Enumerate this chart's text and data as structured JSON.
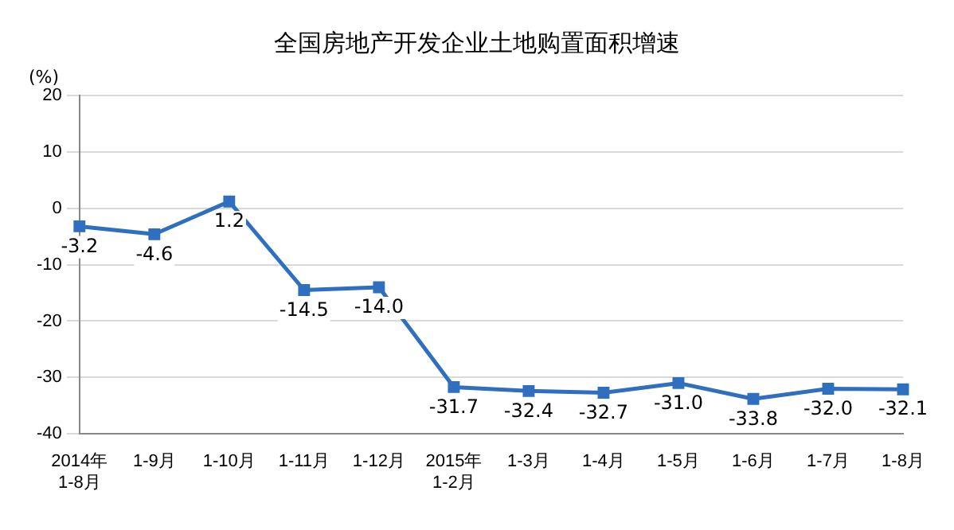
{
  "chart_data": {
    "type": "line",
    "title": "全国房地产开发企业土地购置面积增速",
    "ylabel": "(%)",
    "categories": [
      "2014年\n1-8月",
      "1-9月",
      "1-10月",
      "1-11月",
      "1-12月",
      "2015年\n1-2月",
      "1-3月",
      "1-4月",
      "1-5月",
      "1-6月",
      "1-7月",
      "1-8月"
    ],
    "series": [
      {
        "color": "#2f6fbf",
        "values": [
          -3.2,
          -4.6,
          1.2,
          -14.5,
          -14.0,
          -31.7,
          -32.4,
          -32.7,
          -31.0,
          -33.8,
          -32.0,
          -32.1
        ],
        "value_labels": [
          "-3.2",
          "-4.6",
          "1.2",
          "-14.5",
          "-14.0",
          "-31.7",
          "-32.4",
          "-32.7",
          "-31.0",
          "-33.8",
          "-32.0",
          "-32.1"
        ]
      }
    ],
    "ylim": [
      -40,
      20
    ],
    "yticks": [
      -40,
      -30,
      -20,
      -10,
      0,
      10,
      20
    ],
    "grid": "y",
    "legend": false,
    "marker": "square",
    "line_style": "solid"
  }
}
